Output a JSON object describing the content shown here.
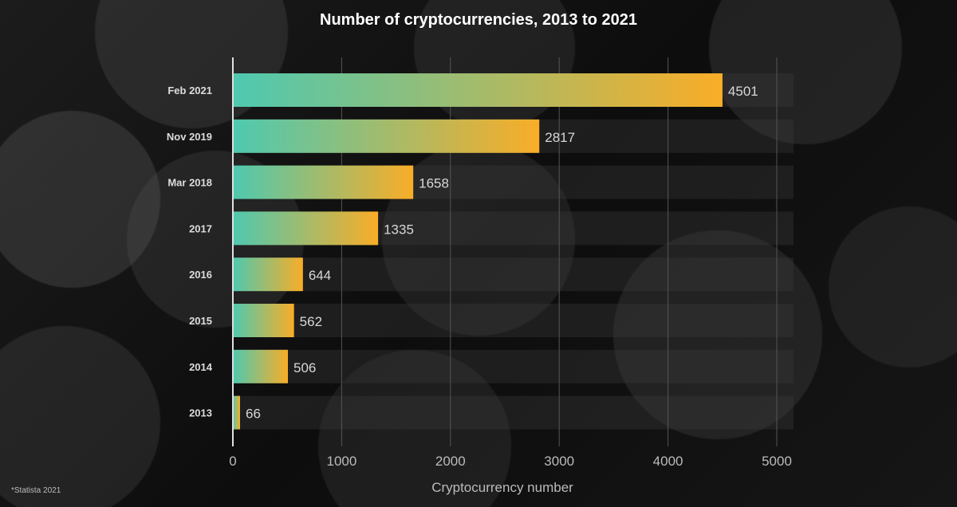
{
  "source_note": "*Statista 2021",
  "chart_data": {
    "type": "bar",
    "orientation": "horizontal",
    "title": "Number of cryptocurrencies, 2013 to 2021",
    "xlabel": "Cryptocurrency number",
    "ylabel": "",
    "categories": [
      "Feb 2021",
      "Nov 2019",
      "Mar 2018",
      "2017",
      "2016",
      "2015",
      "2014",
      "2013"
    ],
    "values": [
      4501,
      2817,
      1658,
      1335,
      644,
      562,
      506,
      66
    ],
    "xlim": [
      0,
      5000
    ],
    "xticks": [
      0,
      1000,
      2000,
      3000,
      4000,
      5000
    ],
    "grid": true,
    "bar_gradient": {
      "start": "#4ec9b0",
      "end": "#f9ad27"
    },
    "colors": {
      "title": "#ffffff",
      "label": "#dddddd",
      "value_label": "#d8d8d8",
      "axis": "#bbbbbb",
      "grid": "#555555"
    }
  }
}
